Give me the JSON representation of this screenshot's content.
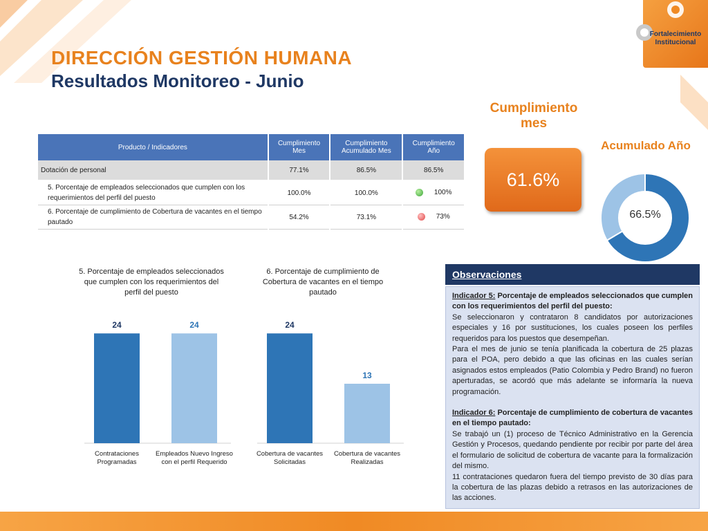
{
  "header": {
    "title": "DIRECCIÓN GESTIÓN HUMANA",
    "subtitle": "Resultados Monitoreo - Junio",
    "logo_text": "Fortalecimiento Institucional"
  },
  "table": {
    "headers": [
      "Producto / Indicadores",
      "Cumplimiento Mes",
      "Cumplimiento Acumulado Mes",
      "Cumplimiento Año"
    ],
    "rows": [
      {
        "label": "Dotación de personal",
        "mes": "77.1%",
        "acum": "86.5%",
        "anio": "86.5%",
        "status": ""
      },
      {
        "label": "5. Porcentaje de empleados seleccionados que cumplen con los requerimientos del perfil del puesto",
        "mes": "100.0%",
        "acum": "100.0%",
        "anio": "100%",
        "status": "green"
      },
      {
        "label": "6. Porcentaje de cumplimiento de Cobertura de vacantes en el tiempo pautado",
        "mes": "54.2%",
        "acum": "73.1%",
        "anio": "73%",
        "status": "red"
      }
    ]
  },
  "cumplimiento_mes": {
    "label": "Cumplimiento mes",
    "value": "61.6%"
  },
  "acumulado_anio": {
    "label": "Acumulado Año",
    "value": "66.5%",
    "fraction": 0.665
  },
  "chart_data": [
    {
      "type": "bar",
      "title": "5. Porcentaje de empleados seleccionados que cumplen con los requerimientos del perfil del puesto",
      "categories": [
        "Contrataciones Programadas",
        "Empleados Nuevo Ingreso con el perfil Requerido"
      ],
      "values": [
        24,
        24
      ],
      "colors": [
        "#2e75b6",
        "#9dc3e6"
      ],
      "ylim": [
        0,
        26
      ]
    },
    {
      "type": "bar",
      "title": "6. Porcentaje de cumplimiento de Cobertura de vacantes en el tiempo pautado",
      "categories": [
        "Cobertura de vacantes Solicitadas",
        "Cobertura de vacantes Realizadas"
      ],
      "values": [
        24,
        13
      ],
      "colors": [
        "#2e75b6",
        "#9dc3e6"
      ],
      "ylim": [
        0,
        26
      ]
    }
  ],
  "observaciones": {
    "title": "Observaciones",
    "ind5_label": "Indicador 5:",
    "ind5_title": " Porcentaje de empleados seleccionados que cumplen con los requerimientos del perfil del puesto:",
    "ind5_p1": "Se seleccionaron y contrataron 8 candidatos por autorizaciones especiales y 16 por sustituciones, los cuales poseen los perfiles requeridos para los puestos que desempeñan.",
    "ind5_p2": "Para el mes de junio se tenía planificada la cobertura de 25 plazas para el POA, pero debido a que las oficinas en las cuales serían asignados estos empleados (Patio Colombia y Pedro Brand) no fueron aperturadas, se acordó que más adelante se informaría la nueva programación.",
    "ind6_label": "Indicador 6:",
    "ind6_title": " Porcentaje de cumplimiento de cobertura de vacantes en el tiempo pautado:",
    "ind6_p1": "Se trabajó un (1) proceso de Técnico Administrativo en la Gerencia Gestión y Procesos, quedando pendiente por recibir por parte del área el formulario de solicitud de cobertura de vacante para la formalización del mismo.",
    "ind6_p2": "11 contrataciones quedaron fuera del tiempo previsto de 30 días para la cobertura de las plazas debido a retrasos en las autorizaciones de las acciones."
  },
  "colors": {
    "accent": "#e8821e",
    "navy": "#1f3864",
    "bar_dark": "#2e75b6",
    "bar_light": "#9dc3e6"
  }
}
